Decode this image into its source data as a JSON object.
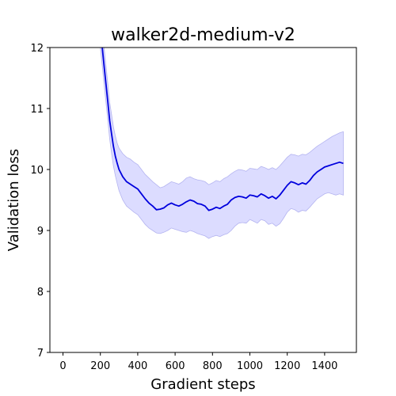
{
  "chart_data": {
    "type": "line",
    "title": "walker2d-medium-v2",
    "xlabel": "Gradient steps",
    "ylabel": "Validation loss",
    "xlim": [
      -70,
      1570
    ],
    "ylim": [
      7,
      12
    ],
    "xticks": [
      0,
      200,
      400,
      600,
      800,
      1000,
      1200,
      1400
    ],
    "yticks": [
      7,
      8,
      9,
      10,
      11,
      12
    ],
    "grid": false,
    "colors": {
      "line": "#0000dd",
      "band": "#d0d0ff",
      "band_edge": "#b4b4f0"
    },
    "series": [
      {
        "x": [
          200,
          210,
          220,
          230,
          240,
          250,
          260,
          270,
          280,
          290,
          300,
          320,
          340,
          360,
          380,
          400,
          420,
          440,
          460,
          480,
          500,
          520,
          540,
          560,
          580,
          600,
          620,
          640,
          660,
          680,
          700,
          720,
          740,
          760,
          780,
          800,
          820,
          840,
          860,
          880,
          900,
          920,
          940,
          960,
          980,
          1000,
          1020,
          1040,
          1060,
          1080,
          1100,
          1120,
          1140,
          1160,
          1180,
          1200,
          1220,
          1240,
          1260,
          1280,
          1300,
          1320,
          1340,
          1360,
          1380,
          1400,
          1420,
          1440,
          1460,
          1480,
          1500
        ],
        "y": [
          12.3,
          12.0,
          11.7,
          11.4,
          11.1,
          10.8,
          10.58,
          10.38,
          10.22,
          10.1,
          10.0,
          9.88,
          9.8,
          9.76,
          9.72,
          9.68,
          9.6,
          9.52,
          9.45,
          9.4,
          9.34,
          9.35,
          9.37,
          9.42,
          9.45,
          9.42,
          9.4,
          9.43,
          9.47,
          9.5,
          9.48,
          9.44,
          9.43,
          9.4,
          9.33,
          9.35,
          9.38,
          9.36,
          9.4,
          9.43,
          9.5,
          9.54,
          9.56,
          9.55,
          9.53,
          9.58,
          9.57,
          9.55,
          9.6,
          9.57,
          9.53,
          9.56,
          9.52,
          9.58,
          9.66,
          9.74,
          9.8,
          9.78,
          9.75,
          9.78,
          9.76,
          9.82,
          9.9,
          9.96,
          10.0,
          10.04,
          10.06,
          10.08,
          10.1,
          10.12,
          10.1
        ],
        "upper": [
          12.6,
          12.3,
          12.0,
          11.7,
          11.4,
          11.1,
          10.9,
          10.7,
          10.55,
          10.43,
          10.35,
          10.26,
          10.2,
          10.17,
          10.12,
          10.08,
          10.0,
          9.92,
          9.86,
          9.8,
          9.75,
          9.7,
          9.72,
          9.76,
          9.8,
          9.78,
          9.76,
          9.8,
          9.86,
          9.88,
          9.85,
          9.83,
          9.82,
          9.8,
          9.75,
          9.78,
          9.82,
          9.8,
          9.85,
          9.88,
          9.93,
          9.97,
          10.0,
          9.99,
          9.97,
          10.02,
          10.01,
          10.0,
          10.05,
          10.03,
          10.0,
          10.03,
          10.0,
          10.06,
          10.13,
          10.2,
          10.25,
          10.24,
          10.22,
          10.25,
          10.24,
          10.28,
          10.33,
          10.38,
          10.42,
          10.46,
          10.5,
          10.54,
          10.57,
          10.6,
          10.62
        ],
        "lower": [
          12.0,
          11.7,
          11.4,
          11.1,
          10.8,
          10.5,
          10.26,
          10.06,
          9.9,
          9.77,
          9.65,
          9.5,
          9.4,
          9.35,
          9.3,
          9.26,
          9.18,
          9.1,
          9.04,
          9.0,
          8.96,
          8.95,
          8.97,
          9.0,
          9.04,
          9.02,
          9.0,
          8.98,
          8.97,
          9.0,
          8.98,
          8.95,
          8.93,
          8.91,
          8.87,
          8.9,
          8.92,
          8.9,
          8.93,
          8.95,
          9.0,
          9.07,
          9.12,
          9.13,
          9.12,
          9.18,
          9.15,
          9.12,
          9.18,
          9.16,
          9.1,
          9.12,
          9.07,
          9.11,
          9.2,
          9.3,
          9.36,
          9.34,
          9.3,
          9.33,
          9.32,
          9.38,
          9.45,
          9.52,
          9.56,
          9.6,
          9.62,
          9.6,
          9.58,
          9.6,
          9.58
        ]
      }
    ]
  }
}
